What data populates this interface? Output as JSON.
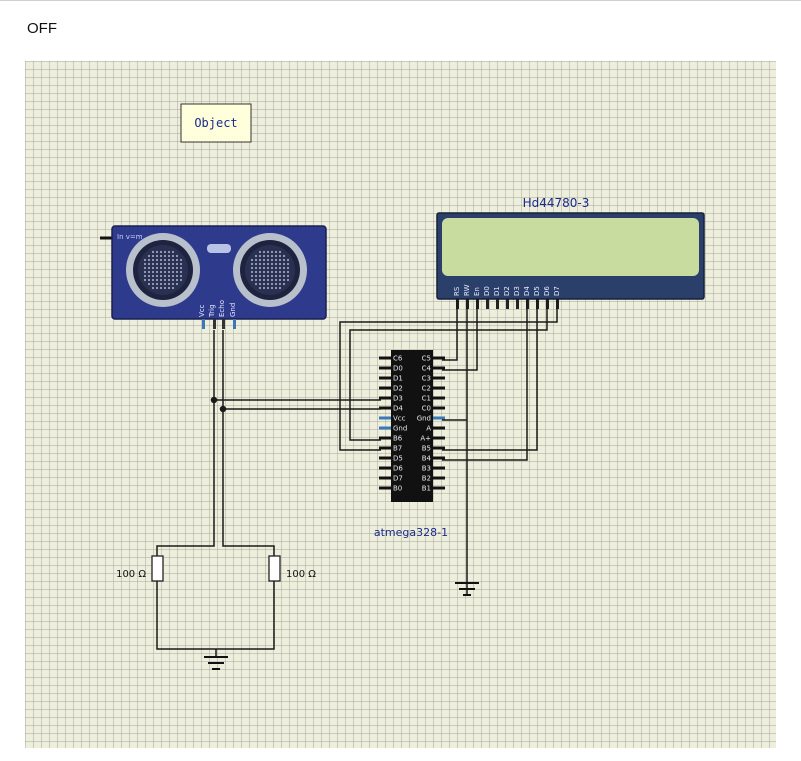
{
  "status": {
    "text": "OFF"
  },
  "object_box": {
    "label": "Object"
  },
  "sensor": {
    "tag": "In v=m",
    "pins": [
      "Vcc",
      "Trig",
      "Echo",
      "Gnd"
    ]
  },
  "lcd": {
    "name": "Hd44780-3",
    "pins": [
      "RS",
      "RW",
      "En",
      "D0",
      "D1",
      "D2",
      "D3",
      "D4",
      "D5",
      "D6",
      "D7"
    ],
    "screen_color": "#c8dca0",
    "body_color": "#2a3f6a"
  },
  "mcu": {
    "name": "atmega328-1",
    "left_pins": [
      "C6",
      "D0",
      "D1",
      "D2",
      "D3",
      "D4",
      "Vcc",
      "Gnd",
      "B6",
      "B7",
      "D5",
      "D6",
      "D7",
      "B0"
    ],
    "right_pins": [
      "C5",
      "C4",
      "C3",
      "C2",
      "C1",
      "C0",
      "Gnd",
      "A",
      "A+",
      "B5",
      "B4",
      "B3",
      "B2",
      "B1"
    ]
  },
  "resistors": [
    {
      "label": "100 Ω"
    },
    {
      "label": "100 Ω"
    }
  ],
  "colors": {
    "grid_bg": "#eeeedd",
    "sensor_body": "#2e3a8c",
    "wire": "#1a1a1a",
    "label_blue": "#1a2a8a"
  }
}
